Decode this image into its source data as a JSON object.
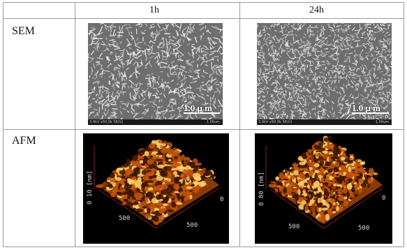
{
  "table": {
    "column_headers": [
      "",
      "1h",
      "24h"
    ],
    "rows": [
      {
        "label": "SEM",
        "images": [
          {
            "scale_label": "1.0 μ m",
            "info_left": "3.0kV x50.0k SE(U)",
            "info_right": "1.00um"
          },
          {
            "scale_label": "1.0 μ m",
            "info_left": "3.0kV x50.0k SE(U)",
            "info_right": "1.00um"
          }
        ]
      },
      {
        "label": "AFM",
        "images": [
          {
            "z_axis": "0 10 [nm]",
            "x_axis": "500",
            "y_axis": "500",
            "corner": "0"
          },
          {
            "z_axis": "0 80 [nm]",
            "x_axis": "500",
            "y_axis": "500",
            "corner": "0"
          }
        ]
      }
    ]
  },
  "colors": {
    "afm_dark": "#3a1400",
    "afm_mid": "#c2530a",
    "afm_light": "#ffd36b",
    "axis": "#8a1f1f"
  }
}
